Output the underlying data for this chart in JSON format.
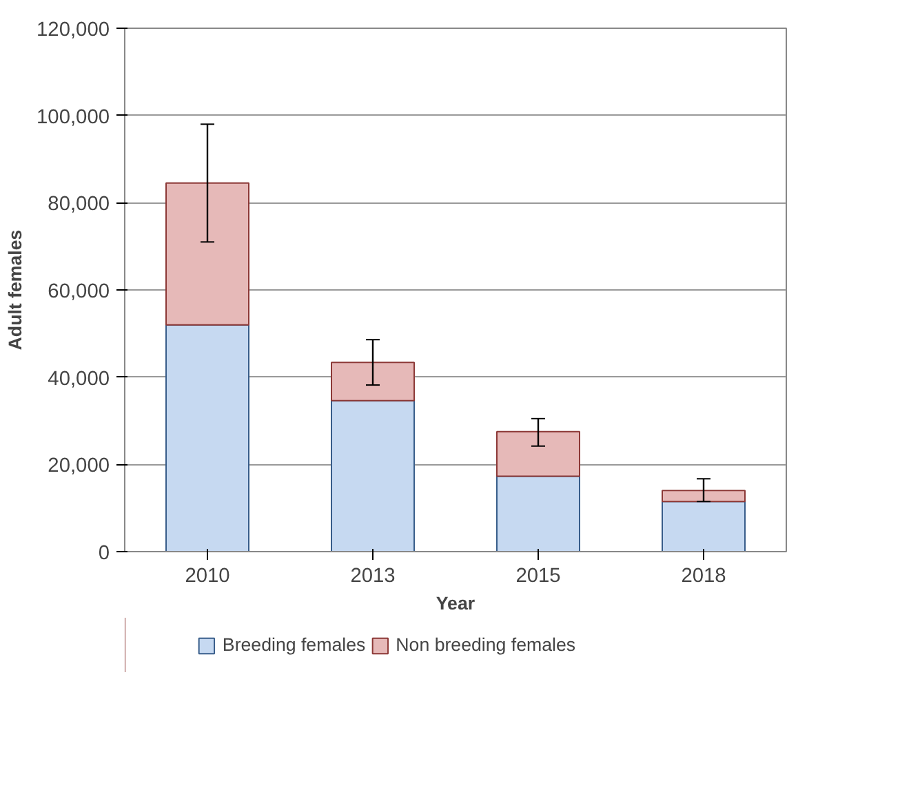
{
  "chart_data": {
    "type": "bar",
    "stacked": true,
    "xlabel": "Year",
    "ylabel": "Adult females",
    "categories": [
      "2010",
      "2013",
      "2015",
      "2018"
    ],
    "series": [
      {
        "name": "Breeding females",
        "color": "#c6d9f1",
        "values": [
          52000,
          34600,
          17300,
          11500
        ]
      },
      {
        "name": "Non breeding females",
        "color": "#e6b9b8",
        "values": [
          32500,
          8800,
          10200,
          2500
        ],
        "errors": [
          [
            71000,
            98000
          ],
          [
            38200,
            48600
          ],
          [
            24200,
            30500
          ],
          [
            11500,
            16700
          ]
        ]
      }
    ],
    "ylim": [
      0,
      120000
    ],
    "yticks": [
      {
        "value": 0,
        "label": "0"
      },
      {
        "value": 20000,
        "label": "20,000"
      },
      {
        "value": 40000,
        "label": "40,000"
      },
      {
        "value": 60000,
        "label": "60,000"
      },
      {
        "value": 80000,
        "label": "80,000"
      },
      {
        "value": 100000,
        "label": "100,000"
      },
      {
        "value": 120000,
        "label": "120,000"
      }
    ],
    "grid": "y",
    "legend": "bottom"
  }
}
